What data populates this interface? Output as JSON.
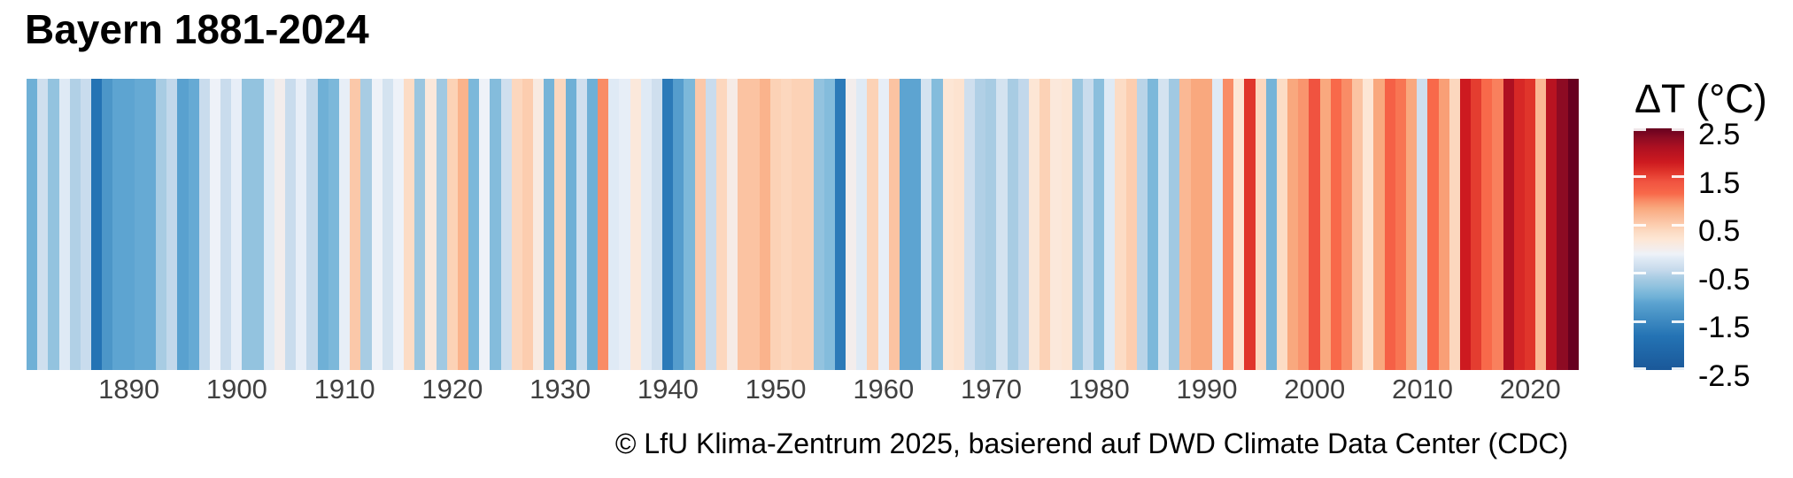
{
  "header": {
    "title": "Bayern 1881-2024"
  },
  "footer": {
    "credit": "© LfU Klima-Zentrum 2025, basierend auf DWD Climate Data Center (CDC)"
  },
  "chart_data": {
    "type": "heatmap",
    "variant": "warming-stripes",
    "title": "Bayern 1881-2024",
    "xlabel": "",
    "ylabel": "",
    "x_start_year": 1881,
    "x_end_year": 2024,
    "x_tick_years": [
      1890,
      1900,
      1910,
      1920,
      1930,
      1940,
      1950,
      1960,
      1970,
      1980,
      1990,
      2000,
      2010,
      2020
    ],
    "unit": "°C",
    "values_description": "temperature anomaly ΔT per year, 1881-2024, estimated from stripe colors",
    "values": [
      -1.0,
      -0.35,
      -0.75,
      -0.2,
      -0.55,
      -0.4,
      -1.8,
      -1.3,
      -1.1,
      -1.1,
      -1.05,
      -1.05,
      -0.6,
      -0.45,
      -1.15,
      -1.05,
      -0.4,
      -0.1,
      -0.4,
      -0.15,
      -0.75,
      -0.75,
      -0.2,
      0.0,
      -0.4,
      -0.15,
      -0.45,
      -1.0,
      -0.9,
      -0.15,
      0.55,
      -0.6,
      -0.1,
      -0.3,
      -0.1,
      0.35,
      -0.7,
      0.15,
      -0.65,
      0.45,
      0.75,
      -0.9,
      -0.1,
      -0.85,
      -0.35,
      0.4,
      0.5,
      0.1,
      -0.95,
      0.4,
      -1.0,
      -0.35,
      -1.0,
      1.0,
      -0.2,
      -0.15,
      0.15,
      -0.2,
      -0.35,
      -1.7,
      -1.2,
      -0.9,
      0.55,
      -0.4,
      0.4,
      0.05,
      0.6,
      0.6,
      0.75,
      0.45,
      0.4,
      0.45,
      0.45,
      -0.75,
      -0.85,
      -1.7,
      0.0,
      -0.2,
      0.45,
      -0.15,
      0.6,
      -1.1,
      -1.1,
      -0.3,
      -0.85,
      0.2,
      0.25,
      -0.35,
      -0.55,
      -0.6,
      -0.3,
      -0.6,
      -0.45,
      0.2,
      0.45,
      0.15,
      0.2,
      -0.7,
      -0.4,
      -0.8,
      -0.2,
      0.35,
      0.5,
      -0.5,
      -0.9,
      -0.3,
      -0.65,
      0.7,
      0.85,
      0.85,
      -0.2,
      1.0,
      0.2,
      1.6,
      0.4,
      -0.95,
      0.35,
      0.85,
      0.95,
      1.4,
      0.85,
      1.15,
      1.0,
      0.6,
      0.2,
      0.85,
      1.25,
      1.1,
      0.85,
      -0.35,
      1.15,
      0.9,
      0.4,
      1.8,
      1.55,
      1.15,
      1.05,
      2.1,
      1.7,
      1.6,
      0.7,
      2.0,
      2.3,
      2.5
    ],
    "colorbar": {
      "title": "ΔT (°C)",
      "ticks": [
        "2.5",
        "1.5",
        "0.5",
        "-0.5",
        "-1.5",
        "-2.5"
      ],
      "max": 2.5,
      "min": -2.5,
      "position": "right"
    },
    "color_scale": [
      {
        "v": -2.5,
        "c": "#1a5899"
      },
      {
        "v": -1.8,
        "c": "#2473b4"
      },
      {
        "v": -1.3,
        "c": "#4c96c8"
      },
      {
        "v": -1.1,
        "c": "#5da4d1"
      },
      {
        "v": -1.0,
        "c": "#6fb0d6"
      },
      {
        "v": -0.9,
        "c": "#7cb8da"
      },
      {
        "v": -0.75,
        "c": "#93c3df"
      },
      {
        "v": -0.6,
        "c": "#a8cce3"
      },
      {
        "v": -0.45,
        "c": "#c2d8eb"
      },
      {
        "v": -0.35,
        "c": "#cfdfee"
      },
      {
        "v": -0.2,
        "c": "#dfeaf5"
      },
      {
        "v": -0.1,
        "c": "#eef2f8"
      },
      {
        "v": 0.0,
        "c": "#f3edec"
      },
      {
        "v": 0.2,
        "c": "#fde6d5"
      },
      {
        "v": 0.35,
        "c": "#fcdcc5"
      },
      {
        "v": 0.45,
        "c": "#fcd2b6"
      },
      {
        "v": 0.6,
        "c": "#fbc3a2"
      },
      {
        "v": 0.85,
        "c": "#f9a87e"
      },
      {
        "v": 1.0,
        "c": "#f98c66"
      },
      {
        "v": 1.15,
        "c": "#f8694a"
      },
      {
        "v": 1.4,
        "c": "#f05340"
      },
      {
        "v": 1.6,
        "c": "#e0352b"
      },
      {
        "v": 1.8,
        "c": "#cd1a20"
      },
      {
        "v": 2.1,
        "c": "#ae1021"
      },
      {
        "v": 2.3,
        "c": "#8d0b23"
      },
      {
        "v": 2.5,
        "c": "#67001f"
      }
    ],
    "grid": false,
    "background": "#ffffff",
    "axis_label_color": "#404040"
  }
}
